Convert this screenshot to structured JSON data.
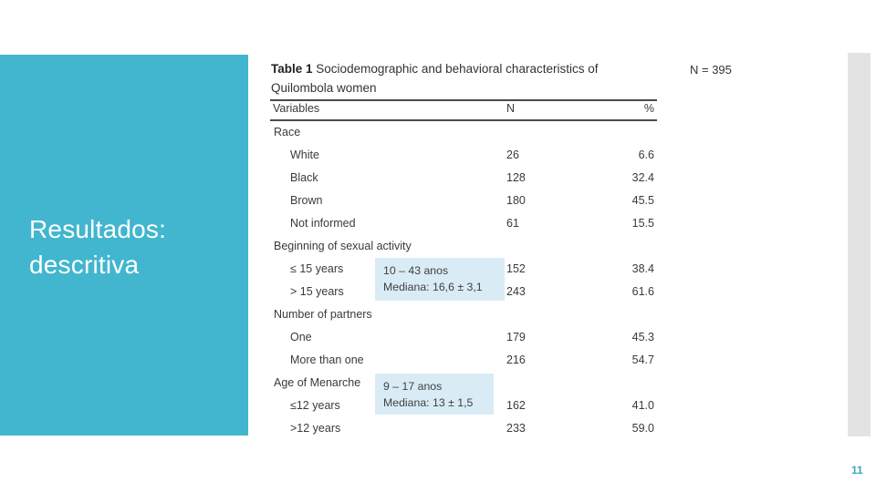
{
  "slide": {
    "title": "Resultados:\ndescritiva",
    "sample_size": "N = 395",
    "page_number": "11"
  },
  "colors": {
    "accent_teal": "#41b6ce",
    "page_number_teal": "#3aa7ba",
    "callout_blue": "#d9ecf6",
    "table_rule": "#4a4a4a",
    "table_text": "#3a3a3a",
    "slide_edge_gray": "#e3e3e3"
  },
  "table": {
    "title_bold": "Table 1",
    "title_line1": "Sociodemographic and behavioral characteristics of",
    "title_line2": "Quilombola women",
    "columns": [
      "Variables",
      "N",
      "%"
    ],
    "rows": [
      {
        "label": "Race",
        "indent": false,
        "n": "",
        "pct": ""
      },
      {
        "label": "White",
        "indent": true,
        "n": "26",
        "pct": "6.6"
      },
      {
        "label": "Black",
        "indent": true,
        "n": "128",
        "pct": "32.4"
      },
      {
        "label": "Brown",
        "indent": true,
        "n": "180",
        "pct": "45.5"
      },
      {
        "label": "Not informed",
        "indent": true,
        "n": "61",
        "pct": "15.5"
      },
      {
        "label": "Beginning of sexual activity",
        "indent": false,
        "n": "",
        "pct": ""
      },
      {
        "label": "≤ 15 years",
        "indent": true,
        "n": "152",
        "pct": "38.4"
      },
      {
        "label": "> 15 years",
        "indent": true,
        "n": "243",
        "pct": "61.6"
      },
      {
        "label": "Number of partners",
        "indent": false,
        "n": "",
        "pct": ""
      },
      {
        "label": "One",
        "indent": true,
        "n": "179",
        "pct": "45.3"
      },
      {
        "label": "More than one",
        "indent": true,
        "n": "216",
        "pct": "54.7"
      },
      {
        "label": "Age of Menarche",
        "indent": false,
        "n": "",
        "pct": ""
      },
      {
        "label": "≤12 years",
        "indent": true,
        "n": "162",
        "pct": "41.0"
      },
      {
        "label": ">12 years",
        "indent": true,
        "n": "233",
        "pct": "59.0"
      }
    ]
  },
  "annotations": [
    {
      "lines": [
        "10 – 43 anos",
        "Mediana: 16,6 ± 3,1"
      ]
    },
    {
      "lines": [
        "9 – 17 anos",
        "Mediana: 13 ± 1,5"
      ]
    }
  ]
}
